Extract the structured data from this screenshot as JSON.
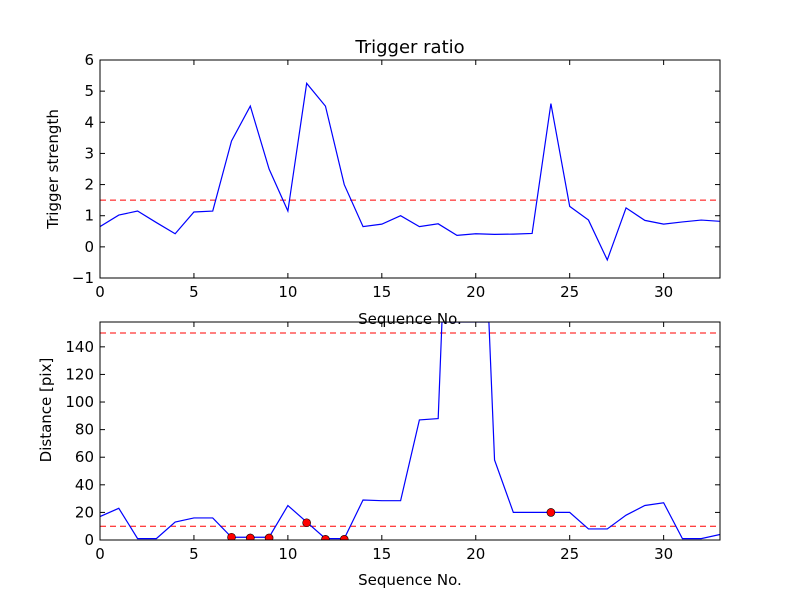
{
  "chart_data": [
    {
      "type": "line",
      "title": "Trigger ratio",
      "xlabel": "Sequence No.",
      "ylabel": "Trigger strength",
      "xlim": [
        0,
        33
      ],
      "ylim": [
        -1,
        6
      ],
      "xticks": [
        "0",
        "5",
        "10",
        "15",
        "20",
        "25",
        "30"
      ],
      "yticks": [
        "−1",
        "0",
        "1",
        "2",
        "3",
        "4",
        "5",
        "6"
      ],
      "grid": false,
      "series": [
        {
          "color": "#0000ff",
          "style": "solid",
          "x": [
            0,
            1,
            2,
            3,
            4,
            5,
            6,
            7,
            8,
            9,
            10,
            11,
            12,
            13,
            14,
            15,
            16,
            17,
            18,
            19,
            20,
            21,
            22,
            23,
            24,
            25,
            26,
            27,
            28,
            29,
            30,
            31,
            32,
            33
          ],
          "y": [
            0.65,
            1.02,
            1.15,
            0.78,
            0.42,
            1.12,
            1.15,
            3.4,
            4.52,
            2.5,
            1.15,
            5.25,
            4.52,
            2.0,
            0.65,
            0.73,
            1.0,
            0.65,
            0.74,
            0.37,
            0.42,
            0.4,
            0.41,
            0.43,
            4.6,
            1.3,
            0.86,
            -0.42,
            1.25,
            0.85,
            0.73,
            0.8,
            0.86,
            0.82
          ]
        }
      ],
      "threshold_lines": [
        {
          "y": 1.5,
          "color": "#ff0000",
          "style": "dashed"
        }
      ]
    },
    {
      "type": "line",
      "title": "",
      "xlabel": "Sequence No.",
      "ylabel": "Distance [pix]",
      "xlim": [
        0,
        33
      ],
      "ylim": [
        0,
        158
      ],
      "xticks": [
        "0",
        "5",
        "10",
        "15",
        "20",
        "25",
        "30"
      ],
      "yticks": [
        "0",
        "20",
        "40",
        "60",
        "80",
        "100",
        "120",
        "140"
      ],
      "grid": false,
      "series": [
        {
          "color": "#0000ff",
          "style": "solid",
          "x": [
            0,
            1,
            2,
            3,
            4,
            5,
            6,
            7,
            8,
            9,
            10,
            11,
            12,
            13,
            14,
            15,
            16,
            17,
            18,
            18.2,
            20.7,
            21,
            22,
            23,
            24,
            25,
            26,
            27,
            28,
            29,
            30,
            31,
            32,
            33
          ],
          "y": [
            17,
            23,
            1,
            1,
            13,
            16,
            16,
            2,
            2,
            2,
            25,
            13,
            1,
            1,
            29,
            28.5,
            28.5,
            87,
            88,
            158,
            158,
            58,
            20,
            20,
            20,
            20,
            8,
            8,
            18,
            25,
            27,
            1,
            1,
            4
          ]
        },
        {
          "color": "#ff0000",
          "style": "markers",
          "x": [
            7,
            8,
            9,
            11,
            12,
            13,
            24
          ],
          "y": [
            2,
            1.5,
            1.5,
            12.5,
            0.5,
            0.5,
            20
          ]
        }
      ],
      "threshold_lines": [
        {
          "y": 150,
          "color": "#ff0000",
          "style": "dashed"
        },
        {
          "y": 10,
          "color": "#ff0000",
          "style": "dashed"
        }
      ]
    }
  ]
}
